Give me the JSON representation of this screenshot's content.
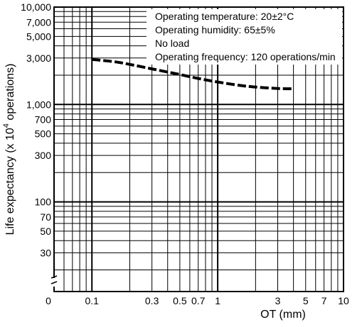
{
  "chart_data": {
    "type": "line",
    "title": "",
    "xlabel": "OT (mm)",
    "ylabel_text": "Life expectancy  (x 10",
    "ylabel_sup": "4",
    "ylabel_tail": " operations)",
    "x_scale": "log",
    "y_scale": "log",
    "xlim": [
      0.05,
      10
    ],
    "ylim": [
      12,
      10000
    ],
    "grid": true,
    "x_ticks": [
      {
        "value": 0.1,
        "label": "0.1"
      },
      {
        "value": 0.3,
        "label": "0.3"
      },
      {
        "value": 0.5,
        "label": "0.5"
      },
      {
        "value": 0.7,
        "label": "0.7"
      },
      {
        "value": 1,
        "label": "1"
      },
      {
        "value": 3,
        "label": "3"
      },
      {
        "value": 5,
        "label": "5"
      },
      {
        "value": 7,
        "label": "7"
      },
      {
        "value": 10,
        "label": "10"
      }
    ],
    "x_origin_label": "0",
    "y_ticks": [
      {
        "value": 30,
        "label": "30"
      },
      {
        "value": 50,
        "label": "50"
      },
      {
        "value": 70,
        "label": "70"
      },
      {
        "value": 100,
        "label": "100"
      },
      {
        "value": 300,
        "label": "300"
      },
      {
        "value": 500,
        "label": "500"
      },
      {
        "value": 700,
        "label": "700"
      },
      {
        "value": 1000,
        "label": "1,000"
      },
      {
        "value": 3000,
        "label": "3,000"
      },
      {
        "value": 5000,
        "label": "5,000"
      },
      {
        "value": 7000,
        "label": "7,000"
      },
      {
        "value": 10000,
        "label": "10,000"
      }
    ],
    "x_grid": [
      0.06,
      0.07,
      0.08,
      0.09,
      0.1,
      0.2,
      0.3,
      0.4,
      0.5,
      0.6,
      0.7,
      0.8,
      0.9,
      1,
      2,
      3,
      4,
      5,
      6,
      7,
      8,
      9,
      10
    ],
    "y_grid": [
      20,
      30,
      40,
      50,
      60,
      70,
      80,
      90,
      100,
      200,
      300,
      400,
      500,
      600,
      700,
      800,
      900,
      1000,
      2000,
      3000,
      4000,
      5000,
      6000,
      7000,
      8000,
      9000,
      10000
    ],
    "annotations": [
      "Operating temperature: 20±2°C",
      "Operating humidity: 65±5%",
      "No load",
      "Operating frequency: 120 operations/min"
    ],
    "series": [
      {
        "x": [
          0.1,
          0.15,
          0.2,
          0.3,
          0.5,
          0.7,
          1,
          1.5,
          2,
          3,
          4
        ],
        "y": [
          2900,
          2750,
          2580,
          2320,
          2030,
          1850,
          1700,
          1570,
          1510,
          1460,
          1450
        ]
      }
    ]
  }
}
